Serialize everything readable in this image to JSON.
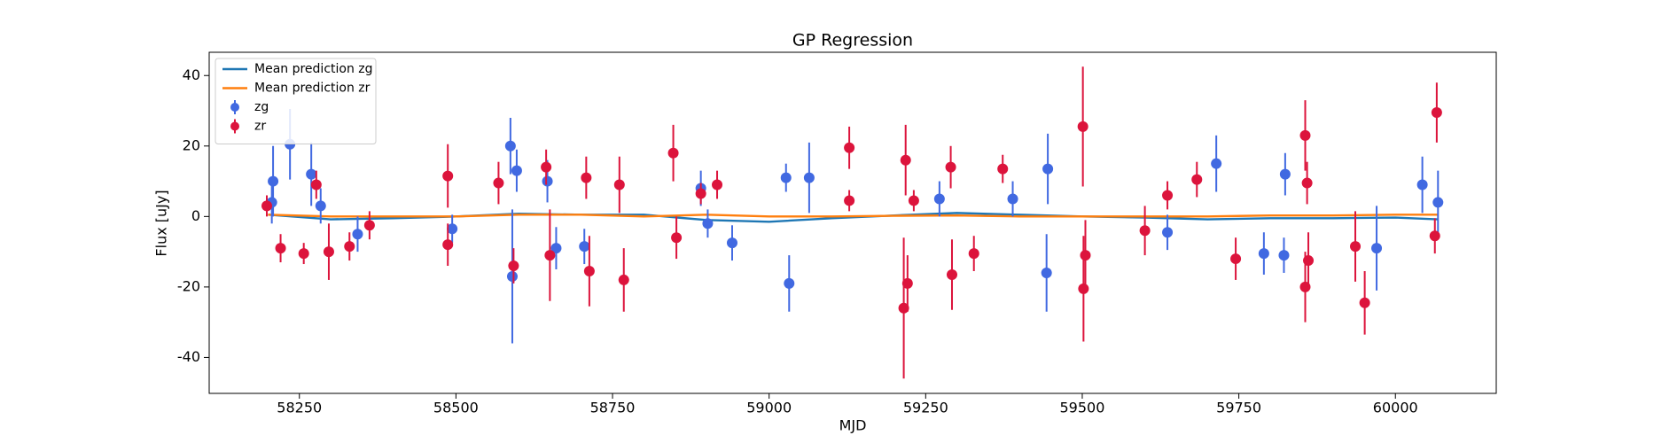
{
  "chart_data": {
    "type": "errorbar",
    "title": "GP Regression",
    "x_label": "MJD",
    "y_label": "Flux [uJy]",
    "xlim": [
      58106,
      60161
    ],
    "ylim": [
      -50.2,
      46.6
    ],
    "xticks": [
      58250,
      58500,
      58750,
      59000,
      59250,
      59500,
      59750,
      60000
    ],
    "yticks": [
      -40,
      -20,
      0,
      20,
      40
    ],
    "legend": "upper left",
    "series": [
      {
        "name": "Mean prediction zg",
        "style": "line",
        "color": "#1f77b4",
        "x": [
          58200,
          58300,
          58400,
          58500,
          58600,
          58700,
          58800,
          58900,
          59000,
          59100,
          59200,
          59300,
          59400,
          59500,
          59600,
          59700,
          59800,
          59900,
          60000,
          60068
        ],
        "values": [
          0.5,
          -0.8,
          -0.5,
          0,
          0.8,
          0.5,
          0.5,
          -1,
          -1.5,
          -0.5,
          0.3,
          1,
          0.5,
          0,
          -0.3,
          -0.8,
          -0.5,
          -0.5,
          -0.3,
          -0.8
        ]
      },
      {
        "name": "Mean prediction zr",
        "style": "line",
        "color": "#ff7f0e",
        "x": [
          58200,
          58300,
          58400,
          58500,
          58600,
          58700,
          58800,
          58900,
          59000,
          59100,
          59200,
          59300,
          59400,
          59500,
          59600,
          59700,
          59800,
          59900,
          60000,
          60068
        ],
        "values": [
          0.5,
          0,
          0,
          0,
          0.5,
          0.5,
          0,
          0.5,
          0,
          0,
          0.2,
          0.3,
          0,
          0,
          0,
          0,
          0.3,
          0.3,
          0.5,
          0.5
        ]
      },
      {
        "name": "zg",
        "style": "errorbar",
        "color": "#4169e1",
        "x": [
          58208,
          58206,
          58235,
          58269,
          58284,
          58343,
          58494,
          58587,
          58590,
          58597,
          58646,
          58660,
          58705,
          58891,
          58902,
          58941,
          59027,
          59032,
          59064,
          59272,
          59389,
          59445,
          59443,
          59636,
          59714,
          59790,
          59824,
          59822,
          59970,
          60043,
          60068
        ],
        "values": [
          10,
          4,
          20.5,
          12,
          3,
          -5,
          -3.5,
          20,
          -17,
          13,
          10,
          -9,
          -8.5,
          8,
          -2,
          -7.5,
          11,
          -19,
          11,
          5,
          5,
          13.5,
          -16,
          -4.5,
          15,
          -10.5,
          12,
          -11,
          -9,
          9,
          4
        ],
        "errors": [
          10,
          6,
          10,
          9,
          5,
          5,
          4,
          8,
          19,
          6,
          6,
          6,
          5,
          5,
          4,
          5,
          4,
          8,
          10,
          5,
          5,
          10,
          11,
          5,
          8,
          6,
          6,
          5,
          12,
          8,
          9
        ]
      },
      {
        "name": "zr",
        "style": "errorbar",
        "color": "#dc143c",
        "x": [
          58198,
          58220,
          58257,
          58277,
          58297,
          58330,
          58362,
          58487,
          58487,
          58568,
          58592,
          58644,
          58650,
          58708,
          58713,
          58761,
          58768,
          58847,
          58852,
          58891,
          58917,
          59128,
          59128,
          59215,
          59218,
          59221,
          59231,
          59292,
          59290,
          59327,
          59373,
          59501,
          59502,
          59505,
          59600,
          59636,
          59683,
          59745,
          59856,
          59856,
          59859,
          59861,
          59936,
          59951,
          60066,
          60063
        ],
        "values": [
          3,
          -9,
          -10.5,
          9,
          -10,
          -8.5,
          -2.5,
          11.5,
          -8,
          9.5,
          -14,
          14,
          -11,
          11,
          -15.5,
          9,
          -18,
          18,
          -6,
          6.5,
          9,
          19.5,
          4.5,
          -26,
          16,
          -19,
          4.5,
          -16.5,
          14,
          -10.5,
          13.5,
          25.5,
          -20.5,
          -11,
          -4,
          6,
          10.5,
          -12,
          23,
          -20,
          9.5,
          -12.5,
          -8.5,
          -24.5,
          29.5,
          -5.5
        ],
        "errors": [
          3,
          4,
          3,
          4,
          8,
          4,
          4,
          9,
          6,
          6,
          5,
          5,
          13,
          6,
          10,
          8,
          9,
          8,
          6,
          3,
          4,
          6,
          3,
          20,
          10,
          8,
          3,
          10,
          6,
          5,
          4,
          17,
          15,
          10,
          7,
          4,
          5,
          6,
          10,
          10,
          6,
          8,
          10,
          9,
          8.5,
          5
        ]
      }
    ]
  }
}
